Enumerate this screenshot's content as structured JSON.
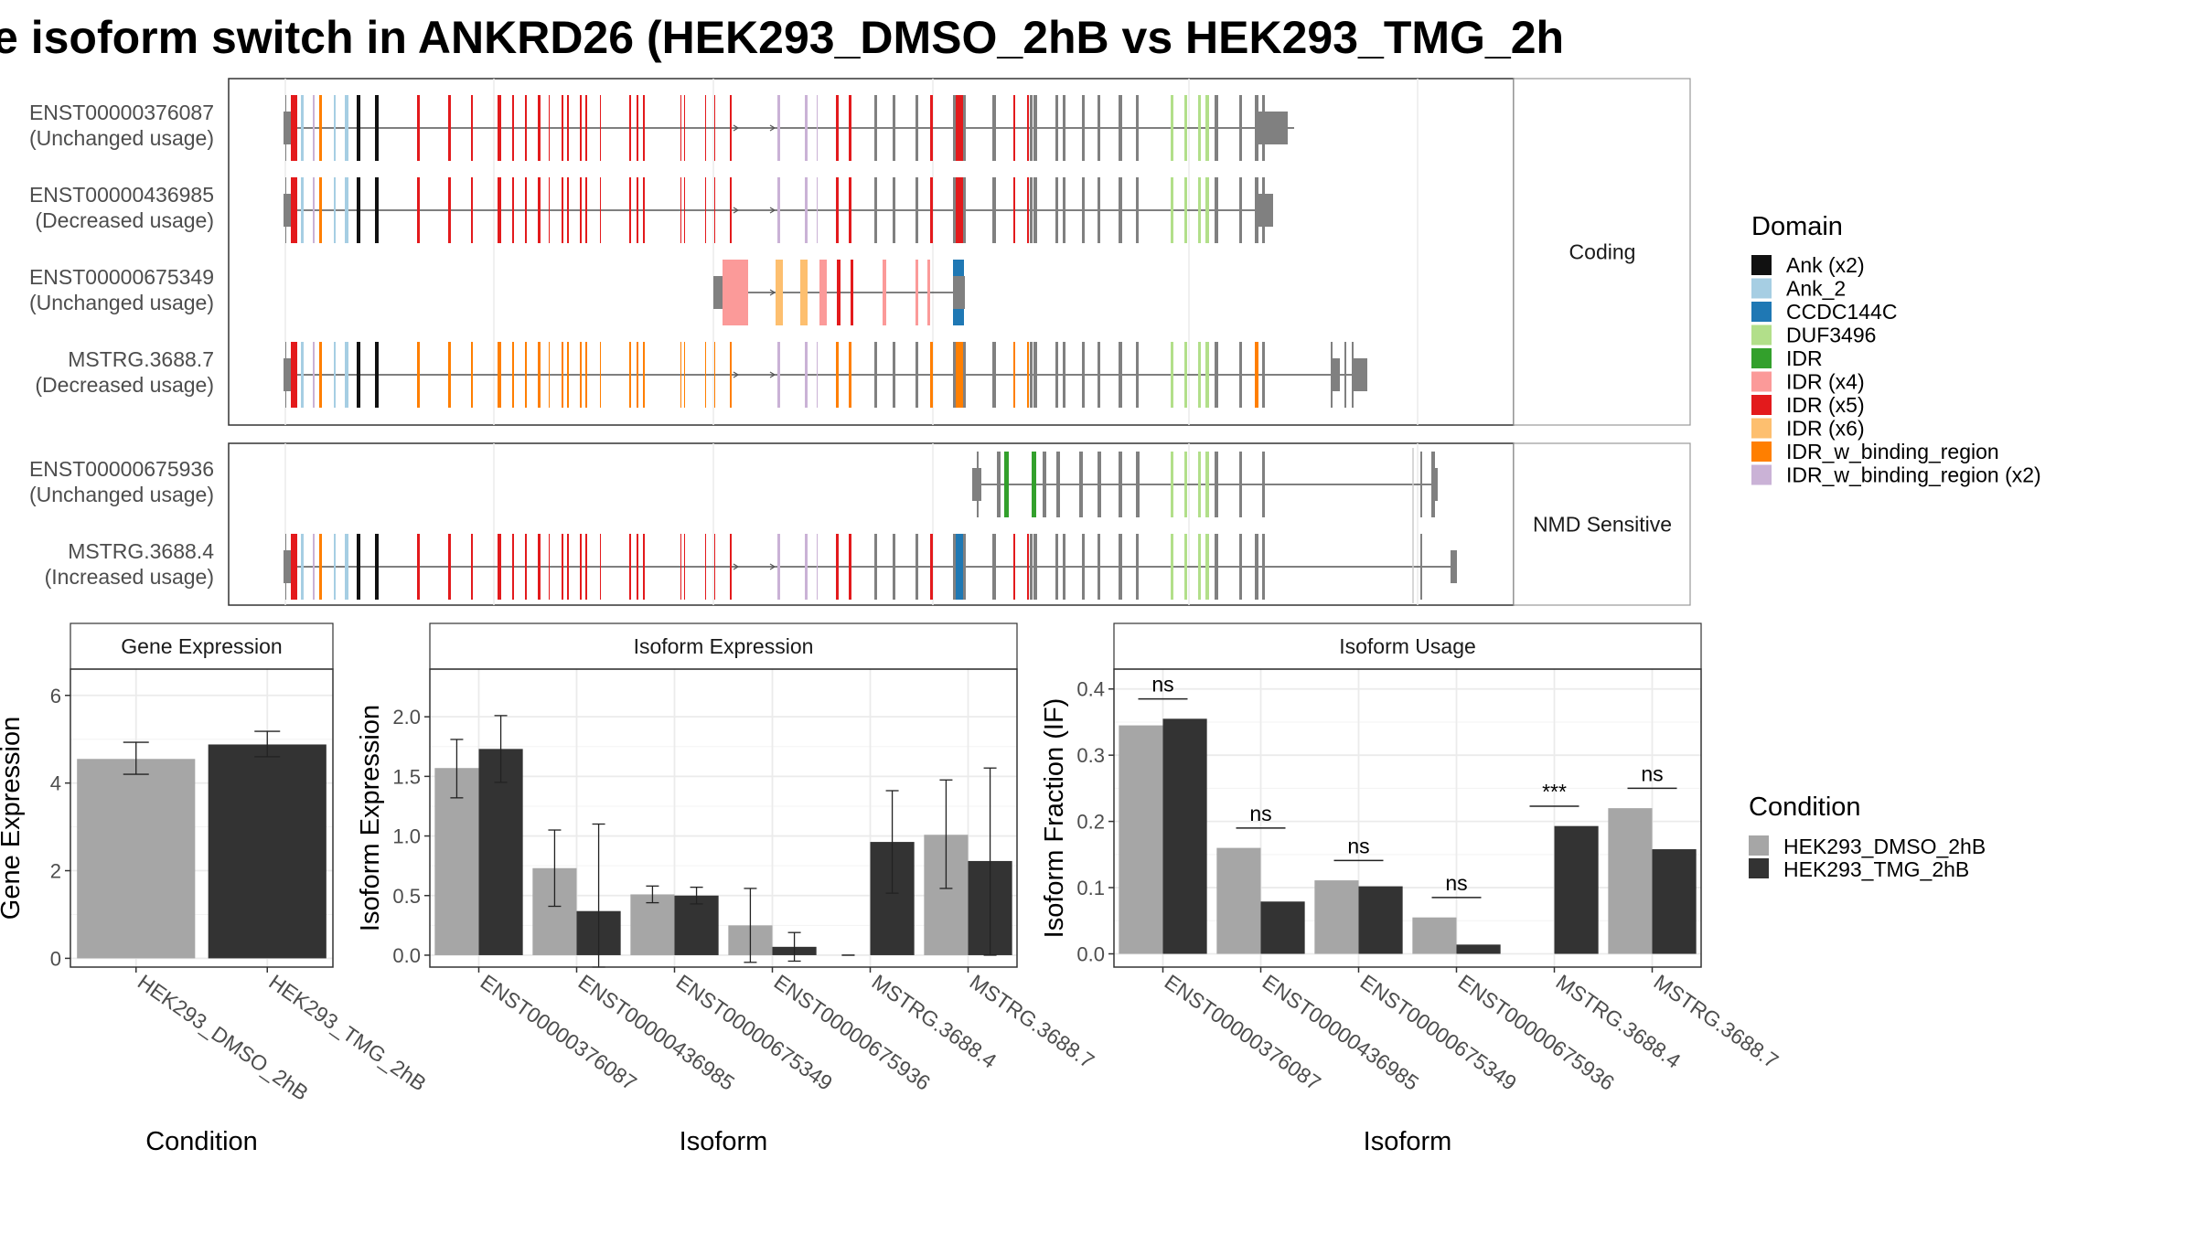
{
  "title": "e isoform switch in ANKRD26 (HEK293_DMSO_2hB vs HEK293_TMG_2h",
  "structure": {
    "groups": [
      {
        "label": "Coding",
        "isoforms": [
          {
            "id": "ENST00000376087",
            "usage": "(Unchanged usage)"
          },
          {
            "id": "ENST00000436985",
            "usage": "(Decreased usage)"
          },
          {
            "id": "ENST00000675349",
            "usage": "(Unchanged usage)"
          },
          {
            "id": "MSTRG.3688.7",
            "usage": "(Decreased usage)"
          }
        ]
      },
      {
        "label": "NMD Sensitive",
        "isoforms": [
          {
            "id": "ENST00000675936",
            "usage": "(Unchanged usage)"
          },
          {
            "id": "MSTRG.3688.4",
            "usage": "(Increased usage)"
          }
        ]
      }
    ],
    "domain_legend": {
      "title": "Domain",
      "items": [
        {
          "label": "Ank (x2)",
          "color": "#111111"
        },
        {
          "label": "Ank_2",
          "color": "#a6cee3"
        },
        {
          "label": "CCDC144C",
          "color": "#1f78b4"
        },
        {
          "label": "DUF3496",
          "color": "#b2df8a"
        },
        {
          "label": "IDR",
          "color": "#33a02c"
        },
        {
          "label": "IDR (x4)",
          "color": "#fb9a99"
        },
        {
          "label": "IDR (x5)",
          "color": "#e31a1c"
        },
        {
          "label": "IDR (x6)",
          "color": "#fdbf6f"
        },
        {
          "label": "IDR_w_binding_region",
          "color": "#ff7f00"
        },
        {
          "label": "IDR_w_binding_region (x2)",
          "color": "#cab2d6"
        }
      ]
    }
  },
  "condition_legend": {
    "title": "Condition",
    "items": [
      {
        "label": "HEK293_DMSO_2hB",
        "color": "#a6a6a6"
      },
      {
        "label": "HEK293_TMG_2hB",
        "color": "#333333"
      }
    ]
  },
  "chart_data": [
    {
      "type": "bar",
      "panel": "Gene Expression",
      "xlabel": "Condition",
      "ylabel": "Gene Expression",
      "ylim": [
        -0.2,
        6.6
      ],
      "yticks": [
        0,
        2,
        4,
        6
      ],
      "categories": [
        "HEK293_DMSO_2hB",
        "HEK293_TMG_2hB"
      ],
      "values": [
        4.55,
        4.88
      ],
      "errors": [
        [
          4.2,
          4.93
        ],
        [
          4.6,
          5.18
        ]
      ]
    },
    {
      "type": "bar",
      "panel": "Isoform Expression",
      "xlabel": "Isoform",
      "ylabel": "Isoform Expression",
      "ylim": [
        -0.1,
        2.4
      ],
      "yticks": [
        0.0,
        0.5,
        1.0,
        1.5,
        2.0
      ],
      "categories": [
        "ENST00000376087",
        "ENST00000436985",
        "ENST00000675349",
        "ENST00000675936",
        "MSTRG.3688.4",
        "MSTRG.3688.7"
      ],
      "series": [
        {
          "name": "HEK293_DMSO_2hB",
          "values": [
            1.57,
            0.73,
            0.51,
            0.25,
            0.0,
            1.01
          ],
          "errors": [
            [
              1.32,
              1.81
            ],
            [
              0.41,
              1.05
            ],
            [
              0.44,
              0.58
            ],
            [
              -0.06,
              0.56
            ],
            [
              0.0,
              0.0
            ],
            [
              0.56,
              1.47
            ]
          ]
        },
        {
          "name": "HEK293_TMG_2hB",
          "values": [
            1.73,
            0.37,
            0.5,
            0.07,
            0.95,
            0.79
          ],
          "errors": [
            [
              1.45,
              2.01
            ],
            [
              -0.36,
              1.1
            ],
            [
              0.43,
              0.57
            ],
            [
              -0.05,
              0.19
            ],
            [
              0.52,
              1.38
            ],
            [
              0.0,
              1.57
            ]
          ]
        }
      ]
    },
    {
      "type": "bar",
      "panel": "Isoform Usage",
      "xlabel": "Isoform",
      "ylabel": "Isoform Fraction (IF)",
      "ylim": [
        -0.02,
        0.43
      ],
      "yticks": [
        0.0,
        0.1,
        0.2,
        0.3,
        0.4
      ],
      "categories": [
        "ENST00000376087",
        "ENST00000436985",
        "ENST00000675349",
        "ENST00000675936",
        "MSTRG.3688.4",
        "MSTRG.3688.7"
      ],
      "series": [
        {
          "name": "HEK293_DMSO_2hB",
          "values": [
            0.345,
            0.16,
            0.111,
            0.055,
            0.0,
            0.22
          ]
        },
        {
          "name": "HEK293_TMG_2hB",
          "values": [
            0.355,
            0.079,
            0.102,
            0.014,
            0.193,
            0.158
          ]
        }
      ],
      "significance": [
        "ns",
        "ns",
        "ns",
        "ns",
        "***",
        "ns"
      ]
    }
  ]
}
